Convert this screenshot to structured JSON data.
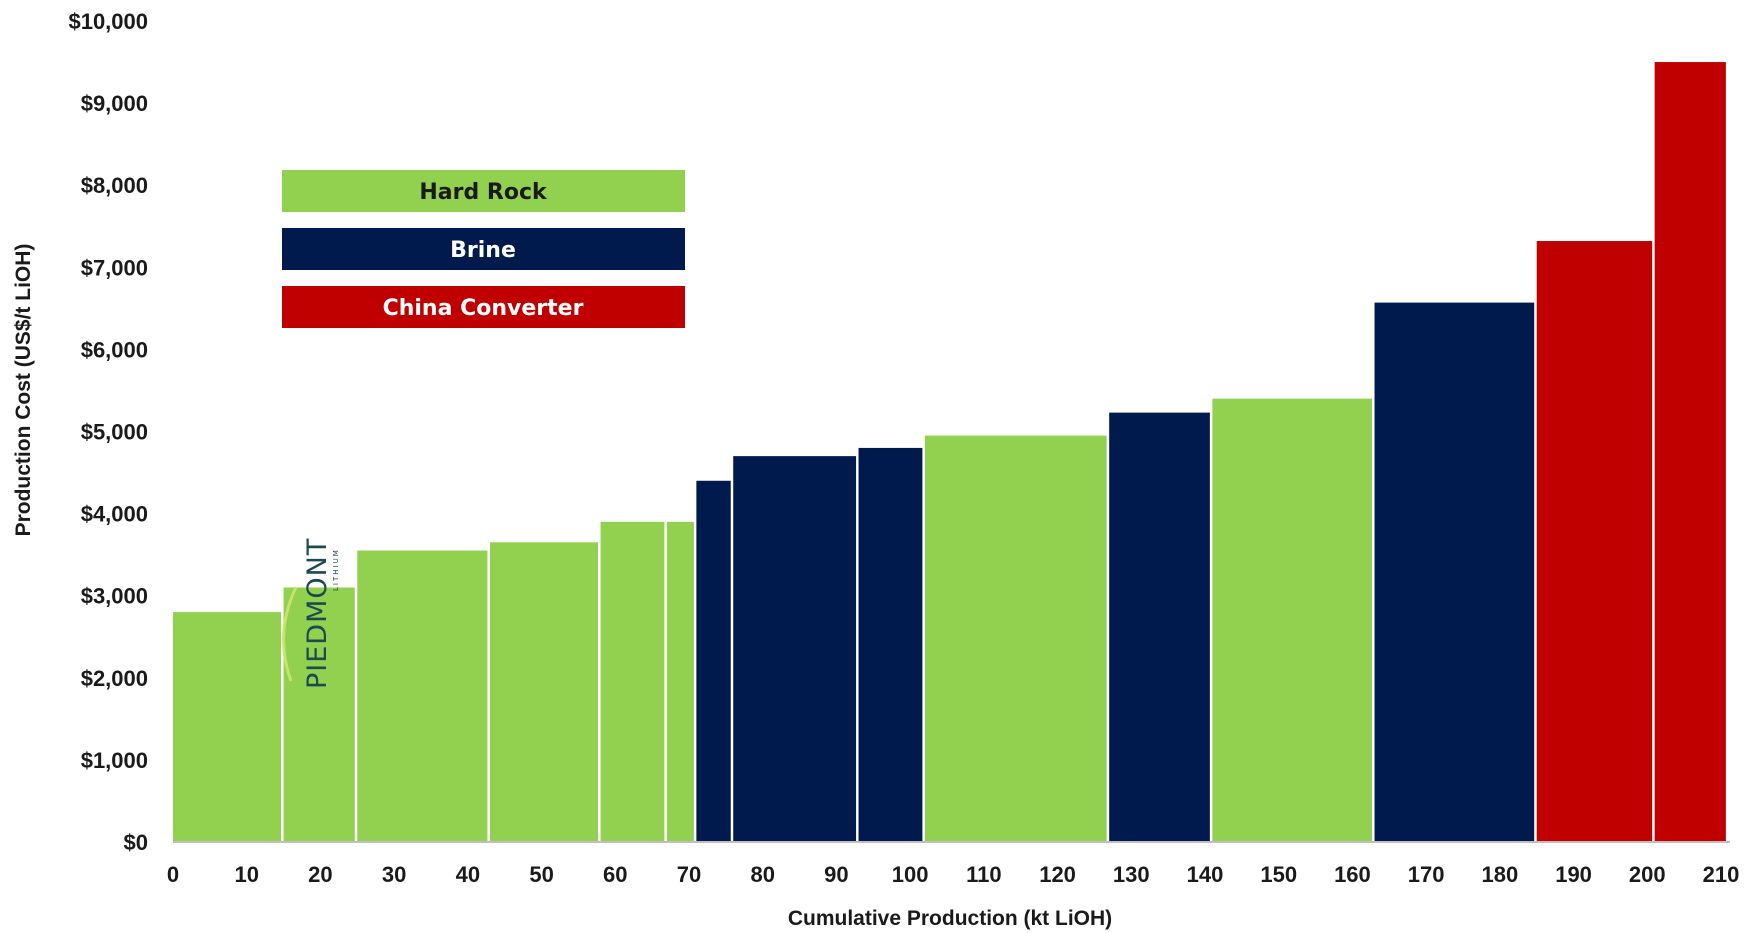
{
  "chart_data": {
    "type": "bar",
    "subtype": "cost-curve",
    "xlabel": "Cumulative Production (kt LiOH)",
    "ylabel": "Production Cost (US$/t LiOH)",
    "xlim": [
      0,
      210
    ],
    "ylim": [
      0,
      10000
    ],
    "x_ticks": [
      "0",
      "10",
      "20",
      "30",
      "40",
      "50",
      "60",
      "70",
      "80",
      "90",
      "100",
      "110",
      "120",
      "130",
      "140",
      "150",
      "160",
      "170",
      "180",
      "190",
      "200",
      "210"
    ],
    "y_ticks": [
      "$0",
      "$1,000",
      "$2,000",
      "$3,000",
      "$4,000",
      "$5,000",
      "$6,000",
      "$7,000",
      "$8,000",
      "$9,000",
      "$10,000"
    ],
    "grid": false,
    "legend_position": "top-left",
    "colors": {
      "Hard Rock": "#92d050",
      "Brine": "#001a4d",
      "China Converter": "#c00000"
    },
    "legend": [
      {
        "label": "Hard Rock",
        "color": "#92d050",
        "text_color": "#1a1a1a"
      },
      {
        "label": "Brine",
        "color": "#001a4d",
        "text_color": "#ffffff"
      },
      {
        "label": "China Converter",
        "color": "#c00000",
        "text_color": "#ffffff"
      }
    ],
    "bars": [
      {
        "x0": 0,
        "x1": 15,
        "value": 2800,
        "category": "Hard Rock"
      },
      {
        "x0": 15,
        "x1": 25,
        "value": 3100,
        "category": "Hard Rock",
        "label": "PIEDMONT"
      },
      {
        "x0": 25,
        "x1": 43,
        "value": 3550,
        "category": "Hard Rock"
      },
      {
        "x0": 43,
        "x1": 58,
        "value": 3650,
        "category": "Hard Rock"
      },
      {
        "x0": 58,
        "x1": 67,
        "value": 3900,
        "category": "Hard Rock"
      },
      {
        "x0": 67,
        "x1": 71,
        "value": 3900,
        "category": "Hard Rock"
      },
      {
        "x0": 71,
        "x1": 76,
        "value": 4400,
        "category": "Brine"
      },
      {
        "x0": 76,
        "x1": 93,
        "value": 4700,
        "category": "Brine"
      },
      {
        "x0": 93,
        "x1": 102,
        "value": 4800,
        "category": "Brine"
      },
      {
        "x0": 102,
        "x1": 127,
        "value": 4950,
        "category": "Hard Rock"
      },
      {
        "x0": 127,
        "x1": 141,
        "value": 5230,
        "category": "Brine"
      },
      {
        "x0": 141,
        "x1": 163,
        "value": 5400,
        "category": "Hard Rock"
      },
      {
        "x0": 163,
        "x1": 185,
        "value": 6570,
        "category": "Brine"
      },
      {
        "x0": 185,
        "x1": 201,
        "value": 7320,
        "category": "China Converter"
      },
      {
        "x0": 201,
        "x1": 211,
        "value": 9500,
        "category": "China Converter"
      }
    ]
  },
  "logo": {
    "name": "PIEDMONT",
    "sub": "LITHIUM"
  }
}
